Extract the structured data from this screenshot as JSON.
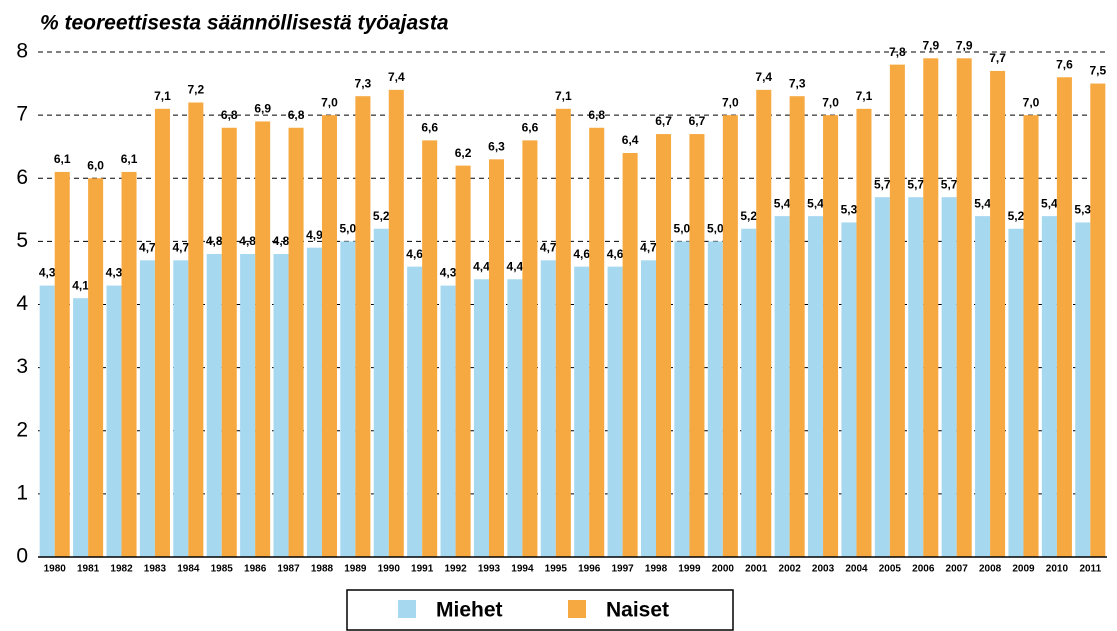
{
  "chart_data": {
    "type": "bar",
    "title": "% teoreettisesta säännöllisestä työajasta",
    "categories": [
      "1980",
      "1981",
      "1982",
      "1983",
      "1984",
      "1985",
      "1986",
      "1987",
      "1988",
      "1989",
      "1990",
      "1991",
      "1992",
      "1993",
      "1994",
      "1995",
      "1996",
      "1997",
      "1998",
      "1999",
      "2000",
      "2001",
      "2002",
      "2003",
      "2004",
      "2005",
      "2006",
      "2007",
      "2008",
      "2009",
      "2010",
      "2011"
    ],
    "series": [
      {
        "name": "Miehet",
        "color": "#a6d8f0",
        "values": [
          4.3,
          4.1,
          4.3,
          4.7,
          4.7,
          4.8,
          4.8,
          4.8,
          4.9,
          5.0,
          5.2,
          4.6,
          4.3,
          4.4,
          4.4,
          4.7,
          4.6,
          4.6,
          4.7,
          5.0,
          5.0,
          5.2,
          5.4,
          5.4,
          5.3,
          5.7,
          5.7,
          5.7,
          5.4,
          5.2,
          5.4,
          5.3
        ],
        "value_labels": [
          "4,3",
          "4,1",
          "4,3",
          "4,7",
          "4,7",
          "4,8",
          "4,8",
          "4,8",
          "4,9",
          "5,0",
          "5,2",
          "4,6",
          "4,3",
          "4,4",
          "4,4",
          "4,7",
          "4,6",
          "4,6",
          "4,7",
          "5,0",
          "5,0",
          "5,2",
          "5,4",
          "5,4",
          "5,3",
          "5,7",
          "5,7",
          "5,7",
          "5,4",
          "5,2",
          "5,4",
          "5,3"
        ]
      },
      {
        "name": "Naiset",
        "color": "#f7a941",
        "values": [
          6.1,
          6.0,
          6.1,
          7.1,
          7.2,
          6.8,
          6.9,
          6.8,
          7.0,
          7.3,
          7.4,
          6.6,
          6.2,
          6.3,
          6.6,
          7.1,
          6.8,
          6.4,
          6.7,
          6.7,
          7.0,
          7.4,
          7.3,
          7.0,
          7.1,
          7.8,
          7.9,
          7.9,
          7.7,
          7.0,
          7.6,
          7.5
        ],
        "value_labels": [
          "6,1",
          "6,0",
          "6,1",
          "7,1",
          "7,2",
          "6,8",
          "6,9",
          "6,8",
          "7,0",
          "7,3",
          "7,4",
          "6,6",
          "6,2",
          "6,3",
          "6,6",
          "7,1",
          "6,8",
          "6,4",
          "6,7",
          "6,7",
          "7,0",
          "7,4",
          "7,3",
          "7,0",
          "7,1",
          "7,8",
          "7,9",
          "7,9",
          "7,7",
          "7,0",
          "7,6",
          "7,5"
        ]
      }
    ],
    "ylim": [
      0,
      8
    ],
    "yticks": [
      0,
      1,
      2,
      3,
      4,
      5,
      6,
      7,
      8
    ],
    "grid": true
  }
}
